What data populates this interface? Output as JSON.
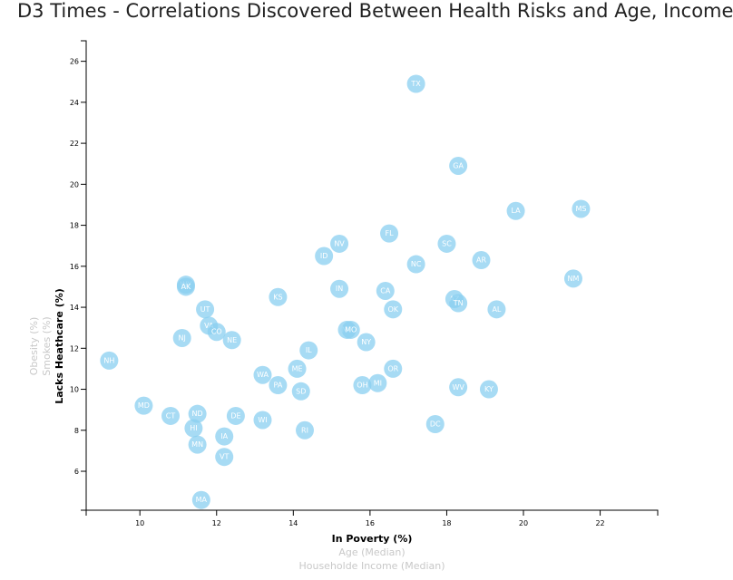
{
  "page": {
    "title": "D3 Times - Correlations Discovered Between Health Risks and Age, Income"
  },
  "colors": {
    "marker": "#89cff0",
    "active_label": "#000000",
    "inactive_label": "#c8c8c8",
    "axis": "#000000"
  },
  "chart_data": {
    "type": "scatter",
    "title": "D3 Times - Correlations Discovered Between Health Risks and Age, Income",
    "xlim": [
      8.6,
      23.5
    ],
    "ylim": [
      4.1,
      27.0
    ],
    "x_ticks": [
      10,
      12,
      14,
      16,
      18,
      20,
      22
    ],
    "y_ticks": [
      6,
      8,
      10,
      12,
      14,
      16,
      18,
      20,
      22,
      24,
      26
    ],
    "x_axis_labels": [
      {
        "text": "In Poverty (%)",
        "active": true
      },
      {
        "text": "Age (Median)",
        "active": false
      },
      {
        "text": "Householde Income (Median)",
        "active": false
      }
    ],
    "y_axis_labels": [
      {
        "text": "Lacks Heathcare (%)",
        "active": true
      },
      {
        "text": "Smokes (%)",
        "active": false
      },
      {
        "text": "Obesity (%)",
        "active": false
      }
    ],
    "grid": false,
    "legend": "none",
    "points": [
      {
        "label": "TX",
        "x": 17.2,
        "y": 24.9
      },
      {
        "label": "GA",
        "x": 18.3,
        "y": 20.9
      },
      {
        "label": "LA",
        "x": 19.8,
        "y": 18.7
      },
      {
        "label": "MS",
        "x": 21.5,
        "y": 18.8
      },
      {
        "label": "FL",
        "x": 16.5,
        "y": 17.6
      },
      {
        "label": "NV",
        "x": 15.2,
        "y": 17.1
      },
      {
        "label": "SC",
        "x": 18.0,
        "y": 17.1
      },
      {
        "label": "ID",
        "x": 14.8,
        "y": 16.5
      },
      {
        "label": "AR",
        "x": 18.9,
        "y": 16.3
      },
      {
        "label": "NC",
        "x": 17.2,
        "y": 16.1
      },
      {
        "label": "NM",
        "x": 21.3,
        "y": 15.4
      },
      {
        "label": "WY",
        "x": 11.2,
        "y": 15.1
      },
      {
        "label": "AK",
        "x": 11.2,
        "y": 15.0
      },
      {
        "label": "IN",
        "x": 15.2,
        "y": 14.9
      },
      {
        "label": "CA",
        "x": 16.4,
        "y": 14.8
      },
      {
        "label": "KS",
        "x": 13.6,
        "y": 14.5
      },
      {
        "label": "AZ",
        "x": 18.2,
        "y": 14.4
      },
      {
        "label": "TN",
        "x": 18.3,
        "y": 14.2
      },
      {
        "label": "UT",
        "x": 11.7,
        "y": 13.9
      },
      {
        "label": "OK",
        "x": 16.6,
        "y": 13.9
      },
      {
        "label": "AL",
        "x": 19.3,
        "y": 13.9
      },
      {
        "label": "VA",
        "x": 11.8,
        "y": 13.1
      },
      {
        "label": "CO",
        "x": 12.0,
        "y": 12.8
      },
      {
        "label": "MT",
        "x": 15.4,
        "y": 12.9
      },
      {
        "label": "MO",
        "x": 15.5,
        "y": 12.9
      },
      {
        "label": "NJ",
        "x": 11.1,
        "y": 12.5
      },
      {
        "label": "NE",
        "x": 12.4,
        "y": 12.4
      },
      {
        "label": "NY",
        "x": 15.9,
        "y": 12.3
      },
      {
        "label": "IL",
        "x": 14.4,
        "y": 11.9
      },
      {
        "label": "NH",
        "x": 9.2,
        "y": 11.4
      },
      {
        "label": "OR",
        "x": 16.6,
        "y": 11.0
      },
      {
        "label": "ME",
        "x": 14.1,
        "y": 11.0
      },
      {
        "label": "WA",
        "x": 13.2,
        "y": 10.7
      },
      {
        "label": "PA",
        "x": 13.6,
        "y": 10.2
      },
      {
        "label": "SD",
        "x": 14.2,
        "y": 9.9
      },
      {
        "label": "OH",
        "x": 15.8,
        "y": 10.2
      },
      {
        "label": "MI",
        "x": 16.2,
        "y": 10.3
      },
      {
        "label": "WV",
        "x": 18.3,
        "y": 10.1
      },
      {
        "label": "KY",
        "x": 19.1,
        "y": 10.0
      },
      {
        "label": "MD",
        "x": 10.1,
        "y": 9.2
      },
      {
        "label": "CT",
        "x": 10.8,
        "y": 8.7
      },
      {
        "label": "ND",
        "x": 11.5,
        "y": 8.8
      },
      {
        "label": "DE",
        "x": 12.5,
        "y": 8.7
      },
      {
        "label": "WI",
        "x": 13.2,
        "y": 8.5
      },
      {
        "label": "DC",
        "x": 17.7,
        "y": 8.3
      },
      {
        "label": "HI",
        "x": 11.4,
        "y": 8.1
      },
      {
        "label": "RI",
        "x": 14.3,
        "y": 8.0
      },
      {
        "label": "IA",
        "x": 12.2,
        "y": 7.7
      },
      {
        "label": "MN",
        "x": 11.5,
        "y": 7.3
      },
      {
        "label": "VT",
        "x": 12.2,
        "y": 6.7
      },
      {
        "label": "MA",
        "x": 11.6,
        "y": 4.6
      }
    ]
  }
}
